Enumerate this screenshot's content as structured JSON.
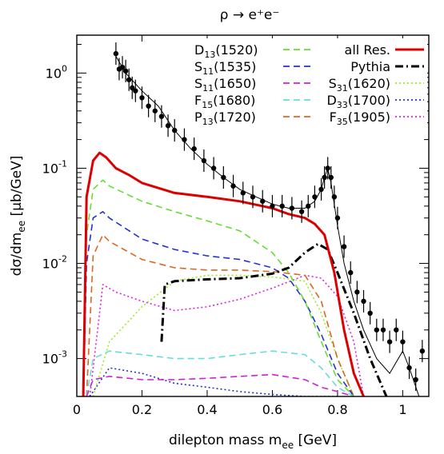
{
  "chart_data": {
    "type": "line",
    "title": "ρ → e⁺e⁻",
    "xlabel": "dilepton mass m",
    "xlabel_sub": "ee",
    "xlabel_unit": " [GeV]",
    "ylabel_parts": [
      "dσ/dm",
      "ee",
      " [μb/GeV]"
    ],
    "xlim": [
      0,
      1.08
    ],
    "ylim": [
      0.0004,
      2.5
    ],
    "yscale": "log",
    "x_ticks": [
      0,
      0.2,
      0.4,
      0.6,
      0.8,
      1
    ],
    "x_tick_labels": [
      "0",
      "0.2",
      "0.4",
      "0.6",
      "0.8",
      "1"
    ],
    "y_ticks": [
      0.001,
      0.01,
      0.1,
      1
    ],
    "y_tick_labels": [
      {
        "base": "10",
        "exp": "-3"
      },
      {
        "base": "10",
        "exp": "-2"
      },
      {
        "base": "10",
        "exp": "-1"
      },
      {
        "base": "10",
        "exp": "0"
      }
    ],
    "legend_position": "top-right",
    "series": [
      {
        "name": "all Res.",
        "color": "#dd0000",
        "style": "solid",
        "x": [
          0.02,
          0.03,
          0.05,
          0.07,
          0.09,
          0.12,
          0.16,
          0.2,
          0.3,
          0.4,
          0.5,
          0.6,
          0.65,
          0.7,
          0.73,
          0.76,
          0.79,
          0.82,
          0.85,
          0.88
        ],
        "y": [
          0.0004,
          0.05,
          0.12,
          0.145,
          0.13,
          0.1,
          0.085,
          0.07,
          0.055,
          0.05,
          0.045,
          0.038,
          0.033,
          0.03,
          0.026,
          0.02,
          0.008,
          0.002,
          0.0007,
          0.0004
        ]
      },
      {
        "name": "Pythia",
        "color": "#000000",
        "style": "dashdot",
        "x": [
          0.26,
          0.27,
          0.3,
          0.4,
          0.5,
          0.6,
          0.65,
          0.7,
          0.74,
          0.77,
          0.8,
          0.85,
          0.9,
          0.95
        ],
        "y": [
          0.0015,
          0.006,
          0.0065,
          0.0068,
          0.007,
          0.0078,
          0.009,
          0.013,
          0.016,
          0.014,
          0.008,
          0.003,
          0.001,
          0.0004
        ]
      },
      {
        "name": "D13(1520)",
        "color": "#66dd33",
        "style": "dashed",
        "x": [
          0.02,
          0.03,
          0.05,
          0.08,
          0.1,
          0.2,
          0.3,
          0.4,
          0.5,
          0.6,
          0.65,
          0.7,
          0.75,
          0.8,
          0.85
        ],
        "y": [
          0.0004,
          0.02,
          0.06,
          0.075,
          0.065,
          0.045,
          0.035,
          0.028,
          0.022,
          0.013,
          0.008,
          0.004,
          0.0015,
          0.0006,
          0.0004
        ]
      },
      {
        "name": "S11(1535)",
        "color": "#2233cc",
        "style": "dashed",
        "x": [
          0.02,
          0.03,
          0.05,
          0.08,
          0.1,
          0.2,
          0.3,
          0.4,
          0.5,
          0.6,
          0.65,
          0.7,
          0.75,
          0.8,
          0.85
        ],
        "y": [
          0.0004,
          0.01,
          0.03,
          0.035,
          0.03,
          0.018,
          0.014,
          0.012,
          0.011,
          0.009,
          0.007,
          0.004,
          0.0018,
          0.0007,
          0.0004
        ]
      },
      {
        "name": "S11(1650)",
        "color": "#cc22cc",
        "style": "dashed",
        "x": [
          0.03,
          0.05,
          0.1,
          0.2,
          0.3,
          0.4,
          0.5,
          0.6,
          0.7,
          0.75,
          0.8,
          0.85
        ],
        "y": [
          0.0004,
          0.0006,
          0.00065,
          0.0006,
          0.0006,
          0.00062,
          0.00065,
          0.00068,
          0.0006,
          0.0005,
          0.00045,
          0.0004
        ]
      },
      {
        "name": "F15(1680)",
        "color": "#66dddd",
        "style": "dashed",
        "x": [
          0.03,
          0.05,
          0.1,
          0.2,
          0.3,
          0.4,
          0.5,
          0.6,
          0.7,
          0.75,
          0.8,
          0.85
        ],
        "y": [
          0.0004,
          0.001,
          0.0012,
          0.0011,
          0.001,
          0.001,
          0.0011,
          0.0012,
          0.0011,
          0.0008,
          0.0005,
          0.0004
        ]
      },
      {
        "name": "P13(1720)",
        "color": "#dd6622",
        "style": "dashed",
        "x": [
          0.03,
          0.05,
          0.08,
          0.1,
          0.2,
          0.3,
          0.4,
          0.5,
          0.6,
          0.7,
          0.75,
          0.8,
          0.85
        ],
        "y": [
          0.0004,
          0.012,
          0.02,
          0.017,
          0.011,
          0.009,
          0.0085,
          0.0085,
          0.0082,
          0.0075,
          0.004,
          0.001,
          0.0004
        ]
      },
      {
        "name": "S31(1620)",
        "color": "#99ee22",
        "style": "dotted",
        "x": [
          0.05,
          0.1,
          0.2,
          0.3,
          0.4,
          0.5,
          0.6,
          0.7,
          0.75,
          0.8,
          0.85
        ],
        "y": [
          0.0004,
          0.0015,
          0.0035,
          0.0065,
          0.0075,
          0.0075,
          0.0072,
          0.0065,
          0.003,
          0.001,
          0.0004
        ]
      },
      {
        "name": "D33(1700)",
        "color": "#2233cc",
        "style": "dotted",
        "x": [
          0.04,
          0.1,
          0.2,
          0.3,
          0.4,
          0.5,
          0.6,
          0.7,
          0.75,
          0.8
        ],
        "y": [
          0.0004,
          0.0008,
          0.0007,
          0.00055,
          0.0005,
          0.00045,
          0.00042,
          0.0004,
          0.0004,
          0.0004
        ]
      },
      {
        "name": "F35(1905)",
        "color": "#dd22dd",
        "style": "dotted",
        "x": [
          0.04,
          0.08,
          0.12,
          0.2,
          0.3,
          0.4,
          0.5,
          0.6,
          0.7,
          0.75,
          0.8,
          0.85,
          0.88
        ],
        "y": [
          0.0004,
          0.006,
          0.005,
          0.004,
          0.0032,
          0.0035,
          0.0042,
          0.0055,
          0.0075,
          0.007,
          0.0045,
          0.0015,
          0.0004
        ]
      }
    ],
    "data_points": {
      "x": [
        0.12,
        0.13,
        0.14,
        0.15,
        0.16,
        0.17,
        0.18,
        0.2,
        0.22,
        0.24,
        0.26,
        0.28,
        0.3,
        0.33,
        0.36,
        0.39,
        0.42,
        0.45,
        0.48,
        0.51,
        0.54,
        0.57,
        0.6,
        0.63,
        0.66,
        0.69,
        0.71,
        0.73,
        0.75,
        0.76,
        0.77,
        0.78,
        0.79,
        0.8,
        0.82,
        0.84,
        0.86,
        0.88,
        0.9,
        0.92,
        0.94,
        0.96,
        0.98,
        1.0,
        1.02,
        1.04,
        1.06
      ],
      "y": [
        1.6,
        1.1,
        1.15,
        1.05,
        0.85,
        0.7,
        0.65,
        0.55,
        0.45,
        0.4,
        0.35,
        0.28,
        0.25,
        0.2,
        0.16,
        0.12,
        0.1,
        0.08,
        0.065,
        0.055,
        0.05,
        0.045,
        0.04,
        0.04,
        0.038,
        0.035,
        0.04,
        0.05,
        0.06,
        0.08,
        0.1,
        0.08,
        0.05,
        0.03,
        0.015,
        0.008,
        0.005,
        0.004,
        0.003,
        0.002,
        0.002,
        0.0015,
        0.002,
        0.0015,
        0.0008,
        0.0006,
        0.0012
      ]
    },
    "data_fit": {
      "x": [
        0.12,
        0.15,
        0.2,
        0.25,
        0.3,
        0.35,
        0.4,
        0.45,
        0.5,
        0.55,
        0.6,
        0.65,
        0.7,
        0.73,
        0.75,
        0.76,
        0.77,
        0.78,
        0.8,
        0.82,
        0.85,
        0.88,
        0.92,
        0.96,
        1.0,
        1.02,
        1.05
      ],
      "y": [
        1.5,
        1.0,
        0.65,
        0.45,
        0.25,
        0.16,
        0.11,
        0.08,
        0.06,
        0.05,
        0.042,
        0.038,
        0.038,
        0.045,
        0.06,
        0.08,
        0.1,
        0.07,
        0.025,
        0.01,
        0.004,
        0.002,
        0.001,
        0.0007,
        0.0012,
        0.0008,
        0.0004
      ]
    }
  }
}
